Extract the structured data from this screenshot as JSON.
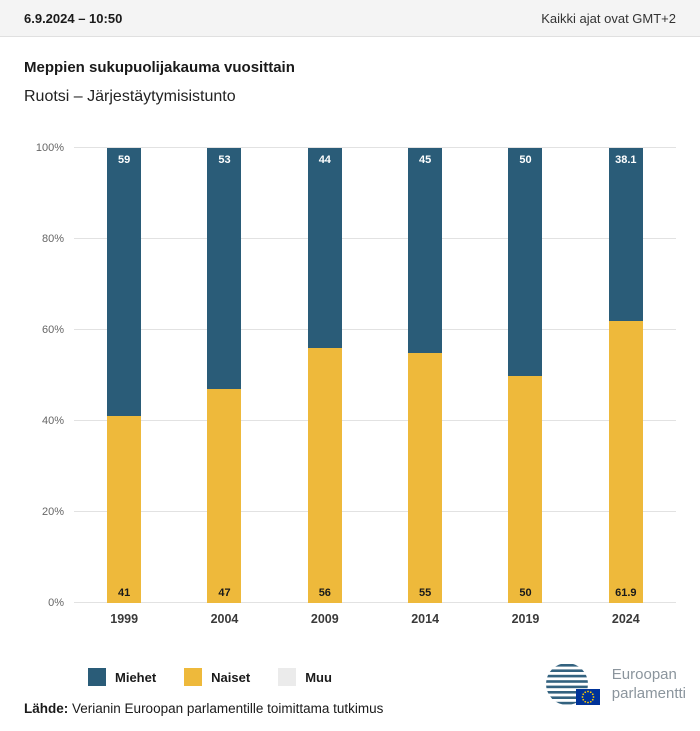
{
  "header": {
    "datetime": "6.9.2024 – 10:50",
    "timezone_note": "Kaikki ajat ovat GMT+2"
  },
  "title": "Meppien sukupuolijakauma vuosittain",
  "subtitle": "Ruotsi – Järjestäytymisistunto",
  "chart_data": {
    "type": "bar",
    "stacked": true,
    "title": "Meppien sukupuolijakauma vuosittain",
    "subtitle": "Ruotsi – Järjestäytymisistunto",
    "categories": [
      "1999",
      "2004",
      "2009",
      "2014",
      "2019",
      "2024"
    ],
    "series": [
      {
        "name": "Miehet",
        "color": "#2a5c78",
        "values": [
          59,
          53,
          44,
          45,
          50,
          38.1
        ]
      },
      {
        "name": "Naiset",
        "color": "#eeb93b",
        "values": [
          41,
          47,
          56,
          55,
          50,
          61.9
        ]
      },
      {
        "name": "Muu",
        "color": "#ebebeb",
        "values": [
          0,
          0,
          0,
          0,
          0,
          0
        ]
      }
    ],
    "ylim": [
      0,
      100
    ],
    "yticks": [
      "0%",
      "20%",
      "40%",
      "60%",
      "80%",
      "100%"
    ],
    "grid": true,
    "legend_position": "bottom"
  },
  "legend": [
    {
      "label": "Miehet",
      "color": "#2a5c78"
    },
    {
      "label": "Naiset",
      "color": "#eeb93b"
    },
    {
      "label": "Muu",
      "color": "#ebebeb"
    }
  ],
  "footer": {
    "source_label": "Lähde:",
    "source_text": " Verianin Euroopan parlamentille toimittama tutkimus"
  },
  "logo": {
    "line1": "Euroopan",
    "line2": "parlamentti"
  }
}
